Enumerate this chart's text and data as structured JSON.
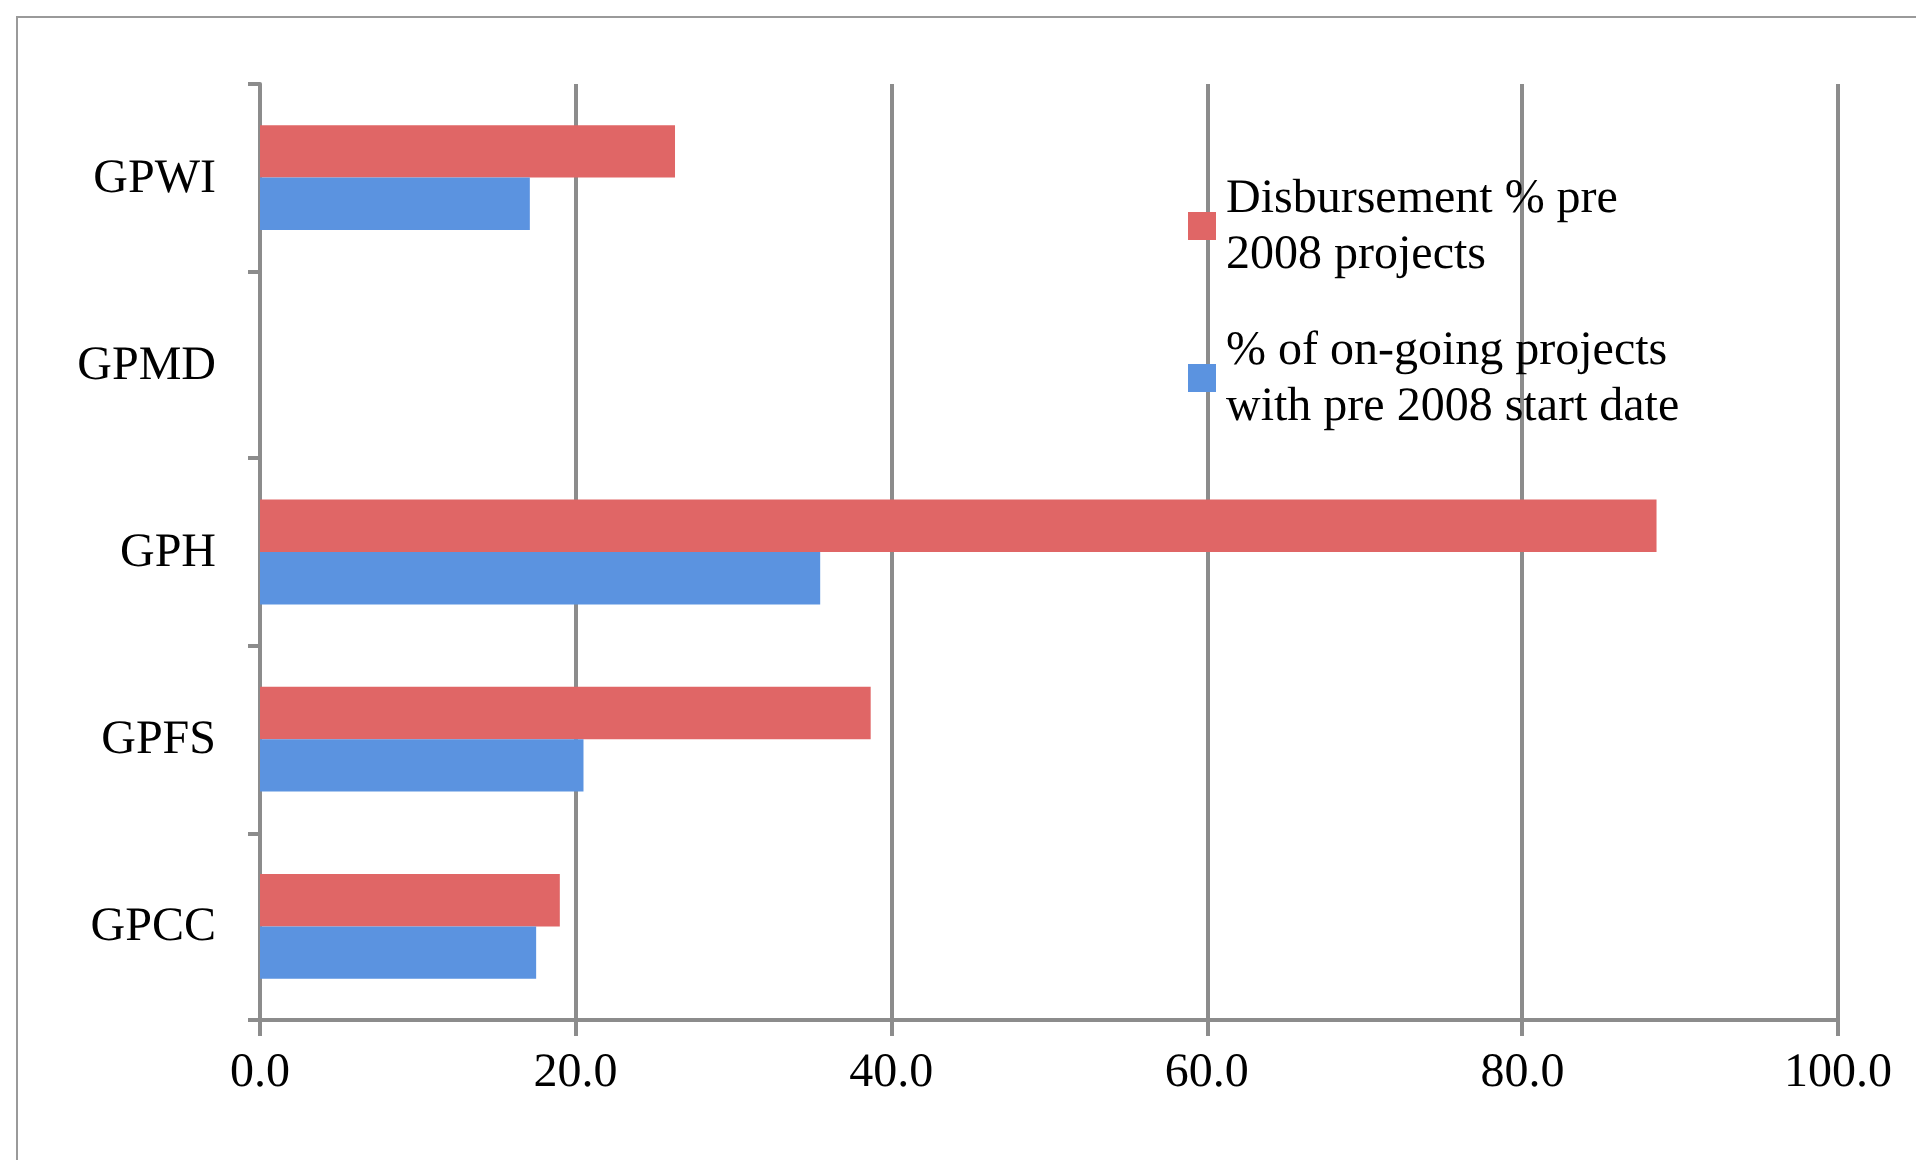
{
  "chart_data": {
    "type": "bar",
    "orientation": "horizontal",
    "categories": [
      "GPWI",
      "GPMD",
      "GPH",
      "GPFS",
      "GPCC"
    ],
    "series": [
      {
        "name": "Disbursement % pre 2008 projects",
        "color": "#e06666",
        "values": [
          26.3,
          null,
          88.5,
          38.7,
          19.0
        ]
      },
      {
        "name": "% of on-going projects with pre 2008 start date",
        "color": "#5b93e0",
        "values": [
          17.1,
          null,
          35.5,
          20.5,
          17.5
        ]
      }
    ],
    "xlim": [
      0,
      100
    ],
    "xticks": [
      {
        "value": 0,
        "label": "0.0"
      },
      {
        "value": 20,
        "label": "20.0"
      },
      {
        "value": 40,
        "label": "40.0"
      },
      {
        "value": 60,
        "label": "60.0"
      },
      {
        "value": 80,
        "label": "80.0"
      },
      {
        "value": 100,
        "label": "100.0"
      }
    ],
    "grid": "x",
    "legend": "top right"
  }
}
